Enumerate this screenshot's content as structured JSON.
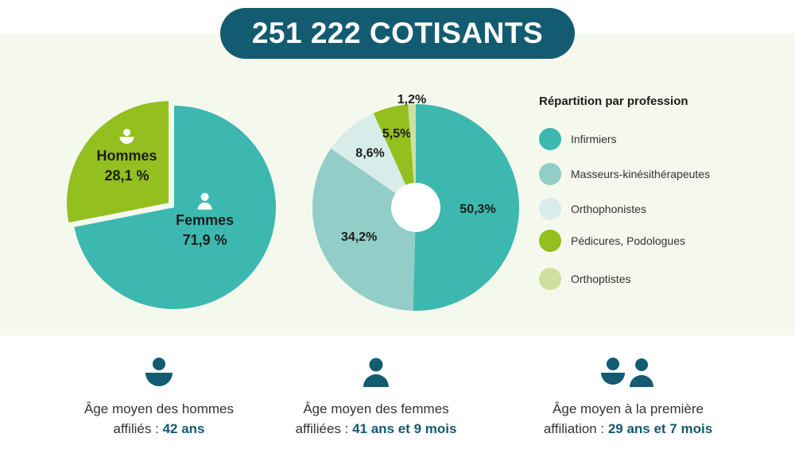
{
  "header": {
    "title": "251 222 COTISANTS"
  },
  "colors": {
    "teal_dark": "#135b70",
    "teal": "#3cb8b0",
    "teal_light": "#92cdc7",
    "pale_blue": "#d8ecea",
    "green": "#93bf1f",
    "pale_green": "#cfdf9f",
    "panel_bg": "#f5f8ed"
  },
  "chart_data": [
    {
      "type": "pie",
      "slices": [
        {
          "name": "Femmes",
          "value": 71.9,
          "label": "71,9 %",
          "color": "#3cb8b0",
          "icon": "woman-icon"
        },
        {
          "name": "Hommes",
          "value": 28.1,
          "label": "28,1 %",
          "color": "#93bf1f",
          "icon": "man-icon",
          "exploded": true
        }
      ]
    },
    {
      "type": "pie",
      "variant": "donut",
      "legend_title": "Répartition par profession",
      "legend_position": "right",
      "slices": [
        {
          "name": "Infirmiers",
          "value": 50.3,
          "label": "50,3%",
          "color": "#3cb8b0"
        },
        {
          "name": "Masseurs-kinésithérapeutes",
          "value": 34.2,
          "label": "34,2%",
          "color": "#92cdc7"
        },
        {
          "name": "Orthophonistes",
          "value": 8.6,
          "label": "8,6%",
          "color": "#d8ecea"
        },
        {
          "name": "Pédicures, Podologues",
          "value": 5.5,
          "label": "5,5%",
          "color": "#93bf1f"
        },
        {
          "name": "Orthoptistes",
          "value": 1.2,
          "label": "1,2%",
          "color": "#cfdf9f"
        }
      ]
    }
  ],
  "stats": [
    {
      "icon": "man-icon",
      "text": "Âge moyen des hommes",
      "text2": "affiliés : ",
      "value": "42 ans"
    },
    {
      "icon": "woman-icon",
      "text": "Âge moyen des femmes",
      "text2": "affiliées : ",
      "value": "41 ans et 9 mois"
    },
    {
      "icon": "couple-icon",
      "text": "Âge moyen à la première",
      "text2": "affiliation : ",
      "value": "29 ans et 7 mois"
    }
  ]
}
